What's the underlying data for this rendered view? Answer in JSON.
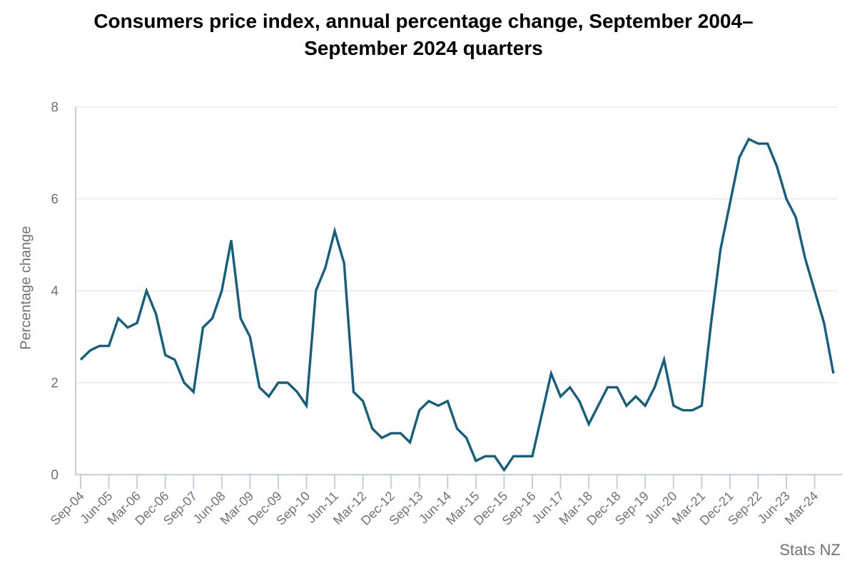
{
  "chart_data": {
    "type": "line",
    "title": "Consumers price index, annual percentage change, September 2004–September 2024 quarters",
    "ylabel": "Percentage change",
    "source": "Stats NZ",
    "ylim": [
      0,
      8
    ],
    "yticks": [
      0,
      2,
      4,
      6,
      8
    ],
    "x_tick_every": 3,
    "x_tick_labels": [
      "Sep-04",
      "Jun-05",
      "Mar-06",
      "Dec-06",
      "Sep-07",
      "Jun-08",
      "Mar-09",
      "Dec-09",
      "Sep-10",
      "Jun-11",
      "Mar-12",
      "Dec-12",
      "Sep-13",
      "Jun-14",
      "Mar-15",
      "Dec-15",
      "Sep-16",
      "Jun-17",
      "Mar-18",
      "Dec-18",
      "Sep-19",
      "Jun-20",
      "Mar-21",
      "Dec-21",
      "Sep-22",
      "Jun-23",
      "Mar-24"
    ],
    "categories": [
      "Sep-04",
      "Dec-04",
      "Mar-05",
      "Jun-05",
      "Sep-05",
      "Dec-05",
      "Mar-06",
      "Jun-06",
      "Sep-06",
      "Dec-06",
      "Mar-07",
      "Jun-07",
      "Sep-07",
      "Dec-07",
      "Mar-08",
      "Jun-08",
      "Sep-08",
      "Dec-08",
      "Mar-09",
      "Jun-09",
      "Sep-09",
      "Dec-09",
      "Mar-10",
      "Jun-10",
      "Sep-10",
      "Dec-10",
      "Mar-11",
      "Jun-11",
      "Sep-11",
      "Dec-11",
      "Mar-12",
      "Jun-12",
      "Sep-12",
      "Dec-12",
      "Mar-13",
      "Jun-13",
      "Sep-13",
      "Dec-13",
      "Mar-14",
      "Jun-14",
      "Sep-14",
      "Dec-14",
      "Mar-15",
      "Jun-15",
      "Sep-15",
      "Dec-15",
      "Mar-16",
      "Jun-16",
      "Sep-16",
      "Dec-16",
      "Mar-17",
      "Jun-17",
      "Sep-17",
      "Dec-17",
      "Mar-18",
      "Jun-18",
      "Sep-18",
      "Dec-18",
      "Mar-19",
      "Jun-19",
      "Sep-19",
      "Dec-19",
      "Mar-20",
      "Jun-20",
      "Sep-20",
      "Dec-20",
      "Mar-21",
      "Jun-21",
      "Sep-21",
      "Dec-21",
      "Mar-22",
      "Jun-22",
      "Sep-22",
      "Dec-22",
      "Mar-23",
      "Jun-23",
      "Sep-23",
      "Dec-23",
      "Mar-24",
      "Jun-24",
      "Sep-24"
    ],
    "values": [
      2.5,
      2.7,
      2.8,
      2.8,
      3.4,
      3.2,
      3.3,
      4.0,
      3.5,
      2.6,
      2.5,
      2.0,
      1.8,
      3.2,
      3.4,
      4.0,
      5.1,
      3.4,
      3.0,
      1.9,
      1.7,
      2.0,
      2.0,
      1.8,
      1.5,
      4.0,
      4.5,
      5.3,
      4.6,
      1.8,
      1.6,
      1.0,
      0.8,
      0.9,
      0.9,
      0.7,
      1.4,
      1.6,
      1.5,
      1.6,
      1.0,
      0.8,
      0.3,
      0.4,
      0.4,
      0.1,
      0.4,
      0.4,
      0.4,
      1.3,
      2.2,
      1.7,
      1.9,
      1.6,
      1.1,
      1.5,
      1.9,
      1.9,
      1.5,
      1.7,
      1.5,
      1.9,
      2.5,
      1.5,
      1.4,
      1.4,
      1.5,
      3.3,
      4.9,
      5.9,
      6.9,
      7.3,
      7.2,
      7.2,
      6.7,
      6.0,
      5.6,
      4.7,
      4.0,
      3.3,
      2.2
    ],
    "colors": {
      "line": "#135f7d",
      "grid": "#e8e8e8",
      "axis": "#c3cde6",
      "labels": "#6d7278",
      "title": "#000000"
    }
  }
}
